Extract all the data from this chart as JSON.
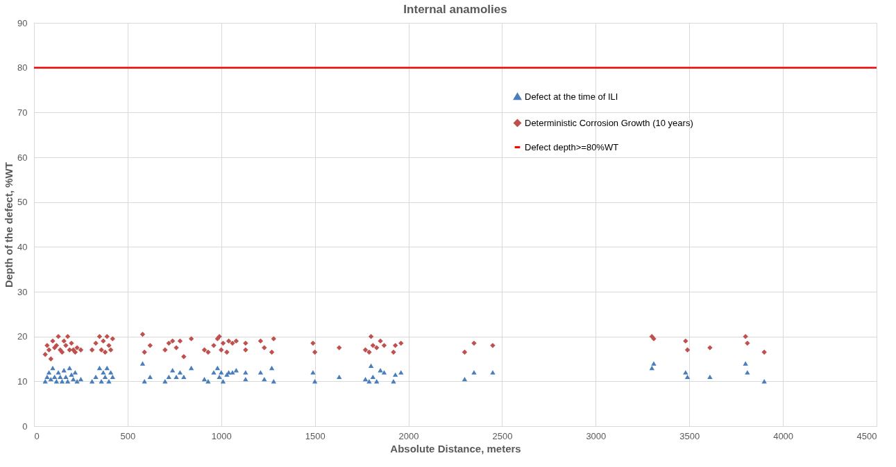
{
  "chart_data": {
    "type": "scatter",
    "title": "Internal anamolies",
    "xlabel": "Absolute Distance, meters",
    "ylabel": "Depth of the defect, %WT",
    "xlim": [
      0,
      4500
    ],
    "xticks": [
      0,
      500,
      1000,
      1500,
      2000,
      2500,
      3000,
      3500,
      4000,
      4500
    ],
    "ylim": [
      0,
      90
    ],
    "yticks": [
      0,
      10,
      20,
      30,
      40,
      50,
      60,
      70,
      80,
      90
    ],
    "grid": true,
    "legend": "right",
    "series": [
      {
        "name": "Defect at the time of ILI",
        "color": "#4a7ebb",
        "marker": "triangle",
        "x": [
          60,
          70,
          80,
          90,
          100,
          110,
          120,
          130,
          140,
          150,
          160,
          170,
          180,
          190,
          200,
          210,
          220,
          230,
          250,
          310,
          330,
          350,
          360,
          370,
          380,
          390,
          400,
          410,
          420,
          580,
          590,
          620,
          700,
          720,
          740,
          760,
          780,
          800,
          840,
          910,
          930,
          960,
          980,
          990,
          1000,
          1010,
          1030,
          1040,
          1060,
          1080,
          1130,
          1130,
          1210,
          1230,
          1270,
          1280,
          1490,
          1500,
          1630,
          1770,
          1790,
          1800,
          1810,
          1830,
          1850,
          1870,
          1920,
          1930,
          1960,
          2300,
          2350,
          2450,
          3300,
          3310,
          3480,
          3490,
          3610,
          3800,
          3810,
          3900
        ],
        "values": [
          10,
          11,
          12,
          10.5,
          13,
          11,
          10,
          12,
          11,
          10,
          12.5,
          11,
          10,
          13,
          11.5,
          10.5,
          12,
          10,
          10.5,
          10,
          11,
          13,
          10,
          12,
          11,
          13,
          10,
          12,
          11,
          14,
          10,
          11,
          10,
          11,
          12.5,
          11,
          12,
          11,
          13,
          10.5,
          10,
          12,
          13,
          11,
          12,
          10,
          11.5,
          12,
          12,
          12.5,
          12,
          10.5,
          12,
          10.5,
          13,
          10,
          12,
          10,
          11,
          10.5,
          10,
          13.5,
          11,
          10,
          12.5,
          12,
          10,
          11.5,
          12,
          10.5,
          12,
          12,
          13,
          14,
          12,
          11,
          11,
          14,
          12,
          10
        ]
      },
      {
        "name": "Deterministic Corrosion Growth (10 years)",
        "color": "#c0504d",
        "marker": "diamond",
        "x": [
          60,
          70,
          80,
          90,
          100,
          110,
          120,
          130,
          140,
          150,
          160,
          170,
          180,
          190,
          200,
          210,
          220,
          230,
          250,
          310,
          330,
          350,
          360,
          370,
          380,
          390,
          400,
          410,
          420,
          580,
          590,
          620,
          700,
          720,
          740,
          760,
          780,
          800,
          840,
          910,
          930,
          960,
          980,
          990,
          1000,
          1010,
          1030,
          1040,
          1060,
          1080,
          1130,
          1130,
          1210,
          1230,
          1270,
          1280,
          1490,
          1500,
          1630,
          1770,
          1790,
          1800,
          1810,
          1830,
          1850,
          1870,
          1920,
          1930,
          1960,
          2300,
          2350,
          2450,
          3300,
          3310,
          3480,
          3490,
          3610,
          3800,
          3810,
          3900
        ],
        "values": [
          16,
          18,
          17,
          15,
          19,
          17.5,
          18,
          20,
          17,
          16.5,
          19,
          18,
          20,
          17,
          18.5,
          17,
          16.5,
          17.5,
          17,
          17,
          18.5,
          20,
          17,
          19,
          16.5,
          20,
          18,
          17,
          19.5,
          20.5,
          16.5,
          18,
          17,
          18.5,
          19,
          17.5,
          19,
          15.5,
          19.5,
          17,
          16.5,
          18,
          19.5,
          20,
          17,
          18.5,
          16.5,
          19,
          18.5,
          19,
          18.5,
          17,
          19,
          17.5,
          16.5,
          19.5,
          18.5,
          16.5,
          17.5,
          17,
          16.5,
          20,
          18,
          17.5,
          19,
          18,
          16.5,
          18,
          18.5,
          16.5,
          18.5,
          18,
          20,
          19.5,
          19,
          17,
          17.5,
          20,
          18.5,
          16.5
        ]
      }
    ],
    "ref_lines": [
      {
        "axis": "y",
        "value": 80,
        "label": "Defect depth>=80%WT",
        "color": "#ff0000",
        "line_style": "solid"
      }
    ]
  }
}
